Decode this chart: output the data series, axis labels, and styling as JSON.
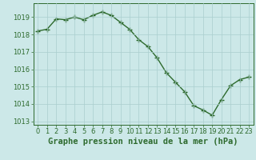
{
  "x": [
    0,
    1,
    2,
    3,
    4,
    5,
    6,
    7,
    8,
    9,
    10,
    11,
    12,
    13,
    14,
    15,
    16,
    17,
    18,
    19,
    20,
    21,
    22,
    23
  ],
  "y": [
    1018.2,
    1018.3,
    1018.9,
    1018.85,
    1019.0,
    1018.85,
    1019.1,
    1019.3,
    1019.1,
    1018.7,
    1018.3,
    1017.7,
    1017.3,
    1016.65,
    1015.8,
    1015.25,
    1014.7,
    1013.9,
    1013.65,
    1013.35,
    1014.25,
    1015.05,
    1015.4,
    1015.55
  ],
  "line_color": "#2d6a2d",
  "marker": "+",
  "marker_size": 4,
  "bg_color": "#cce8e8",
  "grid_color": "#aacece",
  "axis_color": "#2d6a2d",
  "xlabel": "Graphe pression niveau de la mer (hPa)",
  "xlabel_fontsize": 7.5,
  "xlim": [
    -0.5,
    23.5
  ],
  "ylim": [
    1012.8,
    1019.8
  ],
  "yticks": [
    1013,
    1014,
    1015,
    1016,
    1017,
    1018,
    1019
  ],
  "xticks": [
    0,
    1,
    2,
    3,
    4,
    5,
    6,
    7,
    8,
    9,
    10,
    11,
    12,
    13,
    14,
    15,
    16,
    17,
    18,
    19,
    20,
    21,
    22,
    23
  ],
  "tick_fontsize": 6,
  "line_width": 1.0
}
